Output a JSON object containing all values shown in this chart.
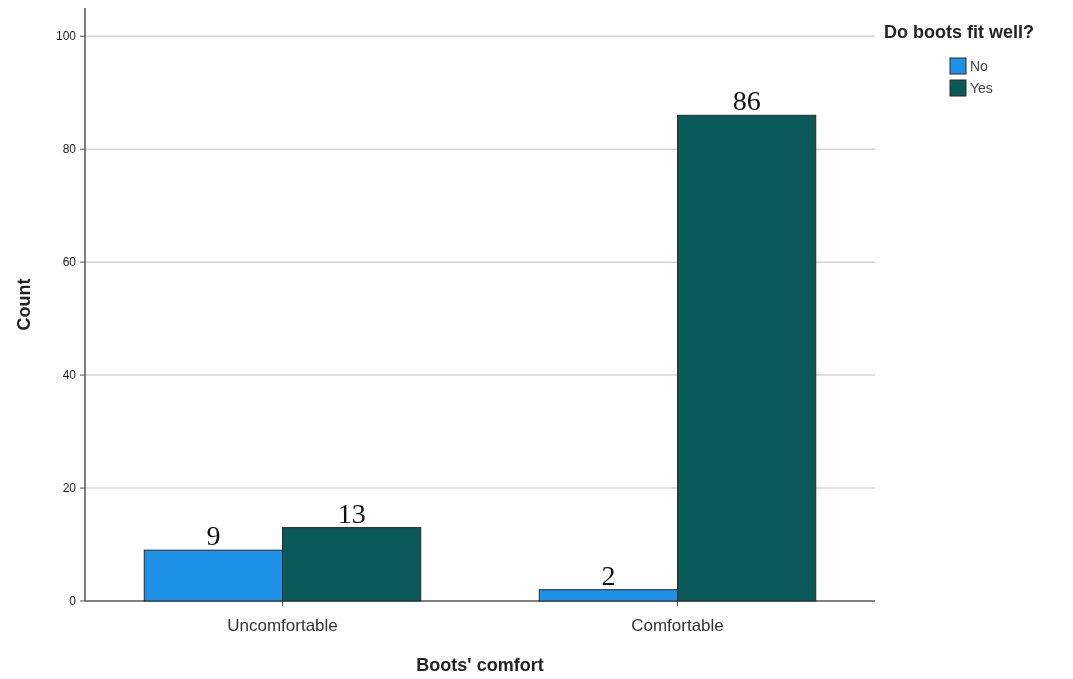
{
  "chart_data": {
    "type": "bar",
    "xlabel": "Boots' comfort",
    "ylabel": "Count",
    "legend_title": "Do boots fit well?",
    "categories": [
      "Uncomfortable",
      "Comfortable"
    ],
    "series": [
      {
        "name": "No",
        "color": "#1e90e6",
        "values": [
          9,
          2
        ]
      },
      {
        "name": "Yes",
        "color": "#0b5a5a",
        "values": [
          13,
          86
        ]
      }
    ],
    "ylim": [
      0,
      105
    ],
    "yticks": [
      0,
      20,
      40,
      60,
      80,
      100
    ],
    "grid": "y",
    "legend": "top right",
    "data_labels": true
  }
}
